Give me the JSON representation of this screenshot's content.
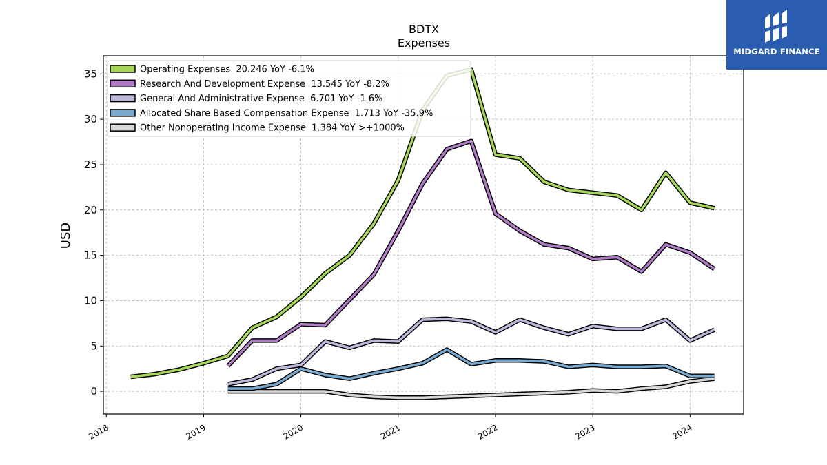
{
  "brand": {
    "name": "MIDGARD FINANCE",
    "logo_icon": "midgard-logo-icon"
  },
  "chart_data": {
    "type": "line",
    "title": "BDTX",
    "subtitle": "Expenses",
    "xlabel": "",
    "ylabel": "USD",
    "ylim": [
      -2.5,
      37
    ],
    "xlim": [
      2017.97,
      2024.55
    ],
    "yticks": [
      0,
      5,
      10,
      15,
      20,
      25,
      30,
      35
    ],
    "xtick_labels": [
      "2018",
      "2019",
      "2020",
      "2021",
      "2022",
      "2023",
      "2024"
    ],
    "grid": true,
    "legend_position": "top-left",
    "series": [
      {
        "name": "Operating Expenses  20.246 YoY -6.1%",
        "color": "#a6d75b",
        "x": [
          2018.25,
          2018.5,
          2018.75,
          2019.0,
          2019.25,
          2019.5,
          2019.75,
          2020.0,
          2020.25,
          2020.5,
          2020.75,
          2021.0,
          2021.25,
          2021.5,
          2021.75,
          2022.0,
          2022.25,
          2022.5,
          2022.75,
          2023.0,
          2023.25,
          2023.5,
          2023.75,
          2024.0,
          2024.25
        ],
        "values": [
          1.6,
          1.9,
          2.4,
          3.1,
          3.9,
          7.0,
          8.2,
          10.4,
          13.0,
          15.0,
          18.5,
          23.3,
          31.0,
          34.8,
          35.5,
          26.1,
          25.7,
          23.1,
          22.2,
          21.9,
          21.6,
          20.0,
          24.1,
          20.8,
          20.2
        ]
      },
      {
        "name": "Research And Development Expense  13.545 YoY -8.2%",
        "color": "#b07cc6",
        "x": [
          2019.25,
          2019.5,
          2019.75,
          2020.0,
          2020.25,
          2020.5,
          2020.75,
          2021.0,
          2021.25,
          2021.5,
          2021.75,
          2022.0,
          2022.25,
          2022.5,
          2022.75,
          2023.0,
          2023.25,
          2023.5,
          2023.75,
          2024.0,
          2024.25
        ],
        "values": [
          2.8,
          5.6,
          5.6,
          7.4,
          7.3,
          10.1,
          12.9,
          17.7,
          22.9,
          26.7,
          27.6,
          19.6,
          17.7,
          16.2,
          15.8,
          14.6,
          14.8,
          13.2,
          16.2,
          15.3,
          13.5
        ]
      },
      {
        "name": "General And Administrative Expense  6.701 YoY -1.6%",
        "color": "#bfb8db",
        "x": [
          2019.25,
          2019.5,
          2019.75,
          2020.0,
          2020.25,
          2020.5,
          2020.75,
          2021.0,
          2021.25,
          2021.5,
          2021.75,
          2022.0,
          2022.25,
          2022.5,
          2022.75,
          2023.0,
          2023.25,
          2023.5,
          2023.75,
          2024.0,
          2024.25
        ],
        "values": [
          0.8,
          1.3,
          2.5,
          2.9,
          5.5,
          4.8,
          5.6,
          5.5,
          7.9,
          8.0,
          7.7,
          6.5,
          7.9,
          7.0,
          6.3,
          7.2,
          6.9,
          6.9,
          7.9,
          5.6,
          6.8
        ]
      },
      {
        "name": "Allocated Share Based Compensation Expense  1.713 YoY -35.9%",
        "color": "#79a9cf",
        "x": [
          2019.25,
          2019.5,
          2019.75,
          2020.0,
          2020.25,
          2020.5,
          2020.75,
          2021.0,
          2021.25,
          2021.5,
          2021.75,
          2022.0,
          2022.25,
          2022.5,
          2022.75,
          2023.0,
          2023.25,
          2023.5,
          2023.75,
          2024.0,
          2024.25
        ],
        "values": [
          0.3,
          0.3,
          0.8,
          2.5,
          1.8,
          1.4,
          2.0,
          2.5,
          3.1,
          4.6,
          3.0,
          3.4,
          3.4,
          3.3,
          2.7,
          2.9,
          2.7,
          2.7,
          2.8,
          1.7,
          1.7
        ]
      },
      {
        "name": "Other Nonoperating Income Expense  1.384 YoY >+1000%",
        "color": "#d8d8d8",
        "x": [
          2019.25,
          2019.5,
          2019.75,
          2020.0,
          2020.25,
          2020.5,
          2020.75,
          2021.0,
          2021.25,
          2021.5,
          2021.75,
          2022.0,
          2022.25,
          2022.5,
          2022.75,
          2023.0,
          2023.25,
          2023.5,
          2023.75,
          2024.0,
          2024.25
        ],
        "values": [
          0.0,
          0.0,
          0.0,
          0.0,
          0.0,
          -0.4,
          -0.6,
          -0.7,
          -0.7,
          -0.6,
          -0.5,
          -0.4,
          -0.3,
          -0.2,
          -0.1,
          0.1,
          0.0,
          0.3,
          0.5,
          1.1,
          1.4
        ]
      }
    ]
  }
}
